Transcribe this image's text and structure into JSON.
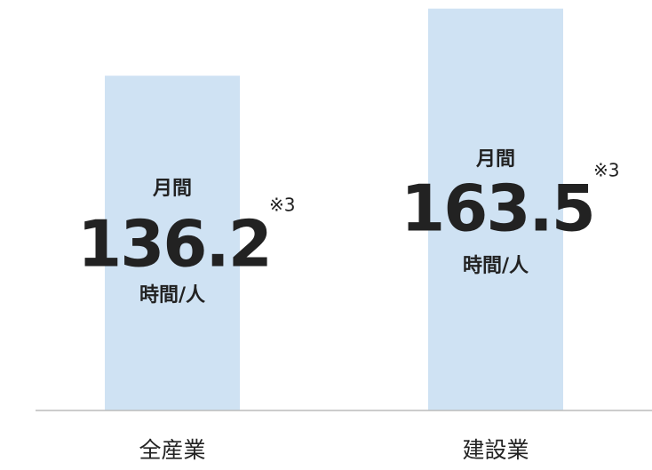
{
  "chart_data": {
    "type": "bar",
    "categories": [
      "全産業",
      "建設業"
    ],
    "values": [
      136.2,
      163.5
    ],
    "color": "#cfe2f3",
    "ylim": [
      0,
      167
    ],
    "label_prefix": "月間",
    "label_suffix": "時間/人",
    "note": "※3"
  }
}
